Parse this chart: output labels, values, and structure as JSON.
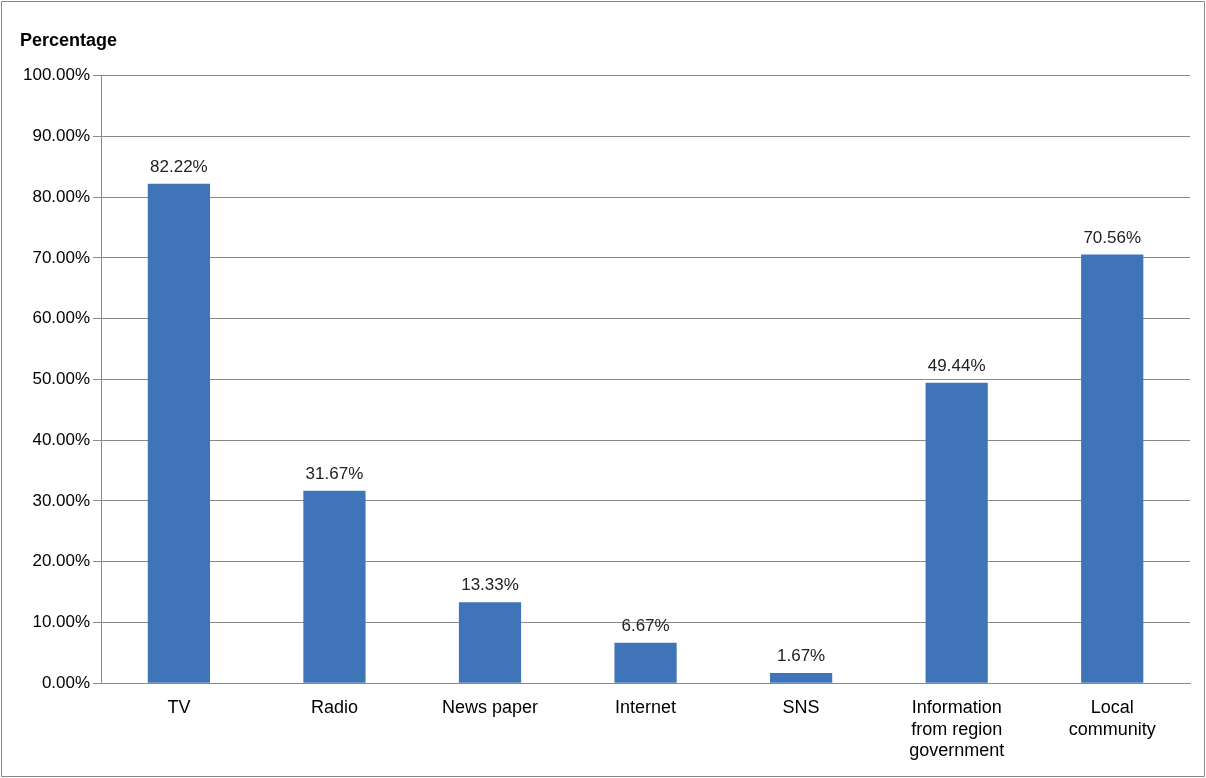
{
  "chart_data": {
    "type": "bar",
    "title": "Percentage",
    "categories": [
      "TV",
      "Radio",
      "News paper",
      "Internet",
      "SNS",
      "Information from region government",
      "Local community"
    ],
    "values": [
      82.22,
      31.67,
      13.33,
      6.67,
      1.67,
      49.44,
      70.56
    ],
    "value_labels": [
      "82.22%",
      "31.67%",
      "13.33%",
      "6.67%",
      "1.67%",
      "49.44%",
      "70.56%"
    ],
    "color": "#3f74b9",
    "ylim": [
      0,
      100
    ],
    "yticks": [
      {
        "value": 0,
        "label": "0.00%"
      },
      {
        "value": 10,
        "label": "10.00%"
      },
      {
        "value": 20,
        "label": "20.00%"
      },
      {
        "value": 30,
        "label": "30.00%"
      },
      {
        "value": 40,
        "label": "40.00%"
      },
      {
        "value": 50,
        "label": "50.00%"
      },
      {
        "value": 60,
        "label": "60.00%"
      },
      {
        "value": 70,
        "label": "70.00%"
      },
      {
        "value": 80,
        "label": "80.00%"
      },
      {
        "value": 90,
        "label": "90.00%"
      },
      {
        "value": 100,
        "label": "100.00%"
      }
    ],
    "grid": "y",
    "legend": false
  }
}
